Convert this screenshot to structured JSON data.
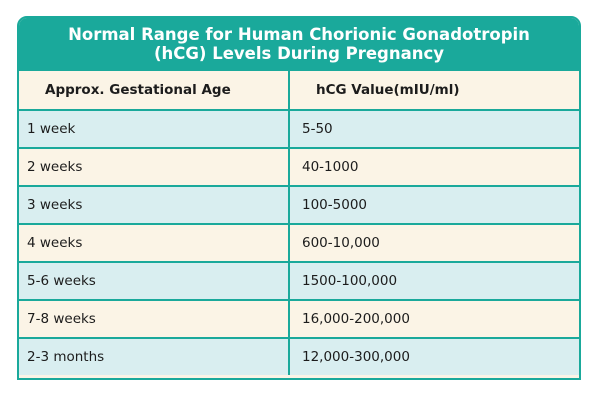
{
  "title": [
    "Normal Range for Human Chorionic Gonadotropin",
    "(hCG) Levels During Pregnancy"
  ],
  "table": {
    "header": [
      "Approx. Gestational Age",
      "hCG Value(mIU/ml)"
    ],
    "rows": [
      [
        "1 week",
        "5-50"
      ],
      [
        "2 weeks",
        "40-1000"
      ],
      [
        "3 weeks",
        "100-5000"
      ],
      [
        "4 weeks",
        "600-10,000"
      ],
      [
        "5-6 weeks",
        "1500-100,000"
      ],
      [
        "7-8 weeks",
        "16,000-200,000"
      ],
      [
        "2-3 months",
        "12,000-300,000"
      ]
    ]
  }
}
